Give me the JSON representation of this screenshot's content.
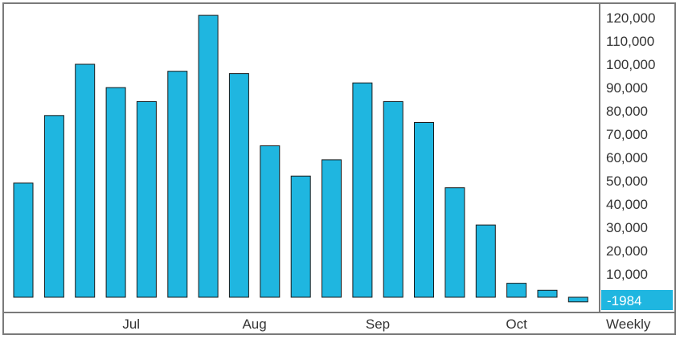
{
  "chart_data": {
    "type": "bar",
    "frequency_label": "Weekly",
    "month_labels": [
      {
        "label": "Jul",
        "at_bar": 3.5
      },
      {
        "label": "Aug",
        "at_bar": 7.5
      },
      {
        "label": "Sep",
        "at_bar": 11.5
      },
      {
        "label": "Oct",
        "at_bar": 16
      }
    ],
    "values": [
      49000,
      78000,
      100000,
      90000,
      84000,
      97000,
      121000,
      96000,
      65000,
      52000,
      59000,
      92000,
      84000,
      75000,
      47000,
      31000,
      6000,
      3000,
      -1984
    ],
    "y_ticks": [
      "120,000",
      "110,000",
      "100,000",
      "90,000",
      "80,000",
      "70,000",
      "60,000",
      "50,000",
      "40,000",
      "30,000",
      "20,000",
      "10,000"
    ],
    "y_tick_values": [
      120000,
      110000,
      100000,
      90000,
      80000,
      70000,
      60000,
      50000,
      40000,
      30000,
      20000,
      10000
    ],
    "last_value_label": "-1984",
    "ylim": [
      -5000,
      125000
    ],
    "grid": false,
    "colors": {
      "bar_fill": "#1fb6e0",
      "bar_stroke": "#1a1a1a",
      "marker_bg": "#1fb6e0",
      "frame": "#7a7a7a"
    }
  }
}
